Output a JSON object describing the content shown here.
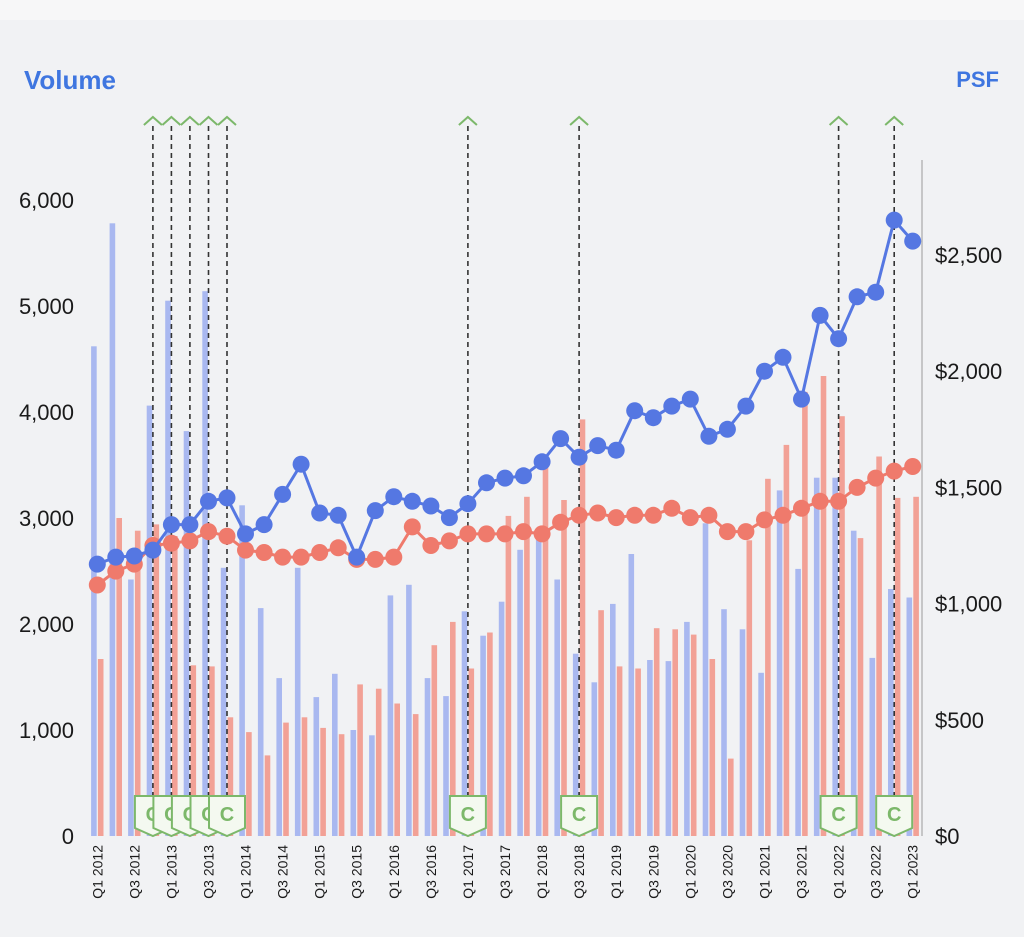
{
  "chart_data": {
    "type": "bar",
    "left_axis_title": "Volume",
    "right_axis_title": "PSF",
    "left_ylim": [
      0,
      6000
    ],
    "right_ylim": [
      0,
      2750
    ],
    "left_ticks": [
      "0",
      "1,000",
      "2,000",
      "3,000",
      "4,000",
      "5,000",
      "6,000"
    ],
    "left_tick_values": [
      0,
      1000,
      2000,
      3000,
      4000,
      5000,
      6000
    ],
    "right_ticks": [
      "$0",
      "$500",
      "$1,000",
      "$1,500",
      "$2,000",
      "$2,500"
    ],
    "right_tick_values": [
      0,
      500,
      1000,
      1500,
      2000,
      2500
    ],
    "x_tick_labels": [
      "Q1 2012",
      "Q3 2012",
      "Q1 2013",
      "Q3 2013",
      "Q1 2014",
      "Q3 2014",
      "Q1 2015",
      "Q3 2015",
      "Q1 2016",
      "Q3 2016",
      "Q1 2017",
      "Q3 2017",
      "Q1 2018",
      "Q3 2018",
      "Q1 2019",
      "Q3 2019",
      "Q1 2020",
      "Q3 2020",
      "Q1 2021",
      "Q3 2021",
      "Q1 2022",
      "Q3 2022",
      "Q1 2023"
    ],
    "x_tick_positions": [
      0,
      2,
      4,
      6,
      8,
      10,
      12,
      14,
      16,
      18,
      20,
      22,
      24,
      26,
      28,
      30,
      32,
      34,
      36,
      38,
      40,
      42,
      44
    ],
    "num_periods": 45,
    "series": [
      {
        "role": "bars",
        "color": "#a9b8f0",
        "values": [
          4620,
          5780,
          2420,
          4060,
          5050,
          3820,
          5140,
          2530,
          3120,
          2150,
          1490,
          2530,
          1310,
          1530,
          1000,
          950,
          2270,
          2370,
          1490,
          1320,
          2120,
          1890,
          2210,
          2700,
          2800,
          2420,
          1720,
          1450,
          2190,
          2660,
          1660,
          1650,
          2020,
          2950,
          2140,
          1950,
          1540,
          3260,
          2520,
          3380,
          3380,
          2880,
          1680,
          2330,
          2250
        ]
      },
      {
        "role": "bars",
        "color": "#f2a196",
        "values": [
          1670,
          3000,
          2880,
          2940,
          2830,
          1610,
          1600,
          1120,
          980,
          760,
          1070,
          1120,
          1020,
          960,
          1430,
          1390,
          1250,
          1150,
          1800,
          2020,
          1580,
          1920,
          3020,
          3200,
          3480,
          3170,
          3930,
          2130,
          1600,
          1580,
          1960,
          1950,
          1900,
          1670,
          730,
          2790,
          3370,
          3690,
          4190,
          4340,
          3960,
          2810,
          3580,
          3190,
          3200
        ]
      },
      {
        "role": "line",
        "color": "#5577e2",
        "values": [
          1170,
          1200,
          1205,
          1230,
          1340,
          1340,
          1440,
          1455,
          1300,
          1340,
          1470,
          1600,
          1390,
          1380,
          1200,
          1400,
          1460,
          1440,
          1420,
          1370,
          1430,
          1520,
          1540,
          1550,
          1610,
          1710,
          1630,
          1680,
          1660,
          1830,
          1800,
          1850,
          1880,
          1720,
          1750,
          1850,
          2000,
          2060,
          1880,
          2240,
          2140,
          2320,
          2340,
          2650,
          2560
        ]
      },
      {
        "role": "line",
        "color": "#ef7a6c",
        "values": [
          1080,
          1140,
          1170,
          1250,
          1260,
          1270,
          1310,
          1290,
          1230,
          1220,
          1200,
          1200,
          1220,
          1240,
          1190,
          1190,
          1200,
          1330,
          1250,
          1270,
          1300,
          1300,
          1300,
          1310,
          1300,
          1350,
          1380,
          1390,
          1370,
          1380,
          1380,
          1410,
          1370,
          1380,
          1310,
          1310,
          1360,
          1380,
          1410,
          1440,
          1440,
          1500,
          1540,
          1570,
          1590
        ]
      }
    ],
    "markers": [
      {
        "period": 3,
        "label": "C"
      },
      {
        "period": 4,
        "label": "C"
      },
      {
        "period": 5,
        "label": "C"
      },
      {
        "period": 6,
        "label": "C"
      },
      {
        "period": 7,
        "label": "C"
      },
      {
        "period": 20,
        "label": "C"
      },
      {
        "period": 26,
        "label": "C"
      },
      {
        "period": 40,
        "label": "C"
      },
      {
        "period": 43,
        "label": "C"
      }
    ]
  }
}
